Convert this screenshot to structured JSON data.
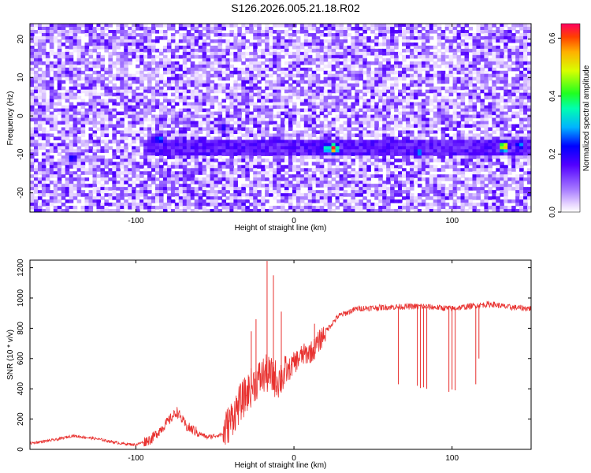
{
  "title": "S126.2026.005.21.18.R02",
  "chart_data": [
    {
      "type": "heatmap",
      "xlabel": "Height of straight line (km)",
      "ylabel": "Frequency (Hz)",
      "xlim": [
        -167,
        150
      ],
      "ylim": [
        -25,
        24
      ],
      "x_ticks": [
        -100,
        0,
        100
      ],
      "y_ticks": [
        -20,
        -10,
        0,
        10,
        20
      ],
      "colorbar": {
        "label": "Normalized spectral amplitude",
        "range": [
          0,
          0.65
        ],
        "ticks": [
          0.0,
          0.2,
          0.4,
          0.6
        ],
        "tick_labels": [
          "0.0",
          "0.2",
          "0.4",
          "0.6"
        ]
      },
      "band": {
        "frequency_center": -8.5,
        "x_start": -95,
        "x_end": 150
      },
      "hotspots": [
        {
          "x": 25,
          "y": -8.5,
          "value": 0.65
        },
        {
          "x": 133,
          "y": -8,
          "value": 0.6
        },
        {
          "x": 20,
          "y": -8.5,
          "value": 0.35
        },
        {
          "x": 79,
          "y": -9.5,
          "value": 0.3
        },
        {
          "x": -85,
          "y": -6,
          "value": 0.3
        },
        {
          "x": -140,
          "y": -11,
          "value": 0.25
        },
        {
          "x": -45,
          "y": -3,
          "value": 0.22
        },
        {
          "x": 143,
          "y": -7.5,
          "value": 0.3
        }
      ]
    },
    {
      "type": "line",
      "xlabel": "Height of straight line (km)",
      "ylabel": "SNR (10 * v/v)",
      "xlim": [
        -167,
        150
      ],
      "ylim": [
        0,
        1250
      ],
      "x_ticks": [
        -100,
        0,
        100
      ],
      "y_ticks": [
        0,
        200,
        400,
        600,
        800,
        1000,
        1200
      ],
      "color": "#e8312f",
      "profile": [
        {
          "x": -167,
          "y": 40
        },
        {
          "x": -150,
          "y": 65
        },
        {
          "x": -140,
          "y": 90
        },
        {
          "x": -125,
          "y": 70
        },
        {
          "x": -110,
          "y": 40
        },
        {
          "x": -100,
          "y": 30
        },
        {
          "x": -90,
          "y": 70
        },
        {
          "x": -80,
          "y": 180
        },
        {
          "x": -74,
          "y": 250
        },
        {
          "x": -68,
          "y": 150
        },
        {
          "x": -55,
          "y": 80
        },
        {
          "x": -45,
          "y": 100
        },
        {
          "x": -35,
          "y": 290
        },
        {
          "x": -25,
          "y": 440
        },
        {
          "x": -18,
          "y": 500
        },
        {
          "x": -10,
          "y": 460
        },
        {
          "x": -5,
          "y": 500
        },
        {
          "x": 0,
          "y": 570
        },
        {
          "x": 5,
          "y": 620
        },
        {
          "x": 12,
          "y": 650
        },
        {
          "x": 20,
          "y": 780
        },
        {
          "x": 28,
          "y": 880
        },
        {
          "x": 40,
          "y": 930
        },
        {
          "x": 60,
          "y": 940
        },
        {
          "x": 80,
          "y": 945
        },
        {
          "x": 100,
          "y": 930
        },
        {
          "x": 115,
          "y": 950
        },
        {
          "x": 125,
          "y": 960
        },
        {
          "x": 135,
          "y": 940
        },
        {
          "x": 150,
          "y": 930
        }
      ],
      "spikes": [
        {
          "x": -17,
          "y": 1245
        },
        {
          "x": -13,
          "y": 1150
        },
        {
          "x": -24,
          "y": 860
        },
        {
          "x": -27,
          "y": 780
        },
        {
          "x": -8,
          "y": 910
        },
        {
          "x": 13,
          "y": 830
        }
      ],
      "dips": [
        {
          "x": 66,
          "y": 430
        },
        {
          "x": 78,
          "y": 420
        },
        {
          "x": 80,
          "y": 405
        },
        {
          "x": 82,
          "y": 410
        },
        {
          "x": 84,
          "y": 400
        },
        {
          "x": 98,
          "y": 380
        },
        {
          "x": 100,
          "y": 395
        },
        {
          "x": 102,
          "y": 390
        },
        {
          "x": 115,
          "y": 430
        },
        {
          "x": 117,
          "y": 600
        }
      ]
    }
  ]
}
